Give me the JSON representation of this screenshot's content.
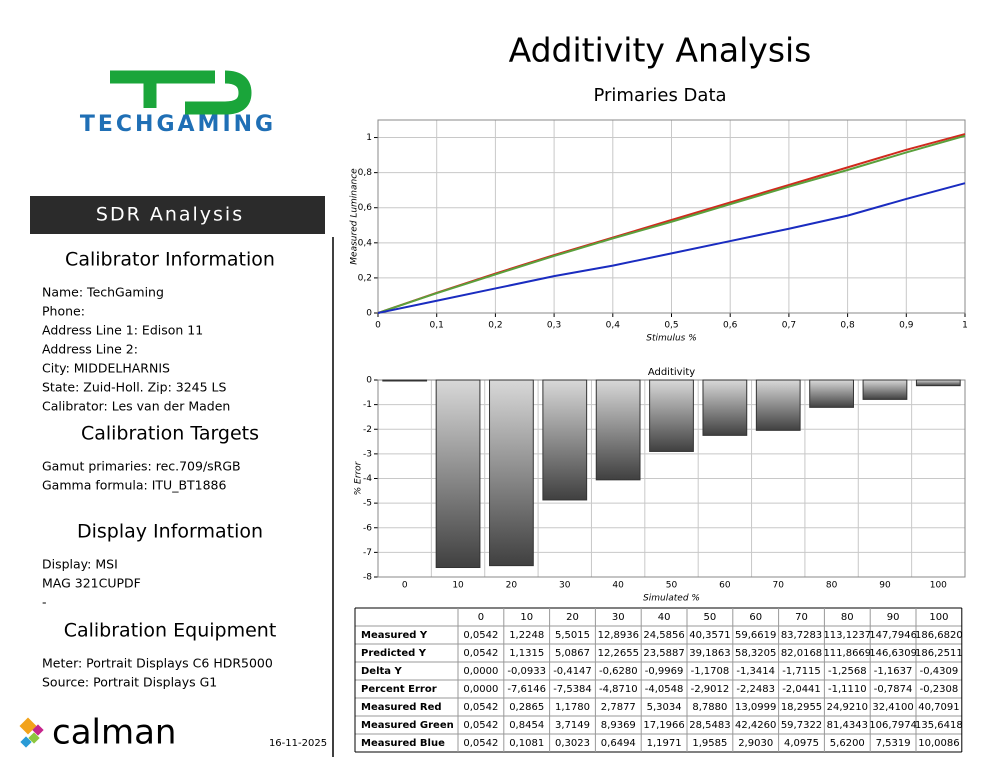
{
  "logo": {
    "brand": "TECHGAMING",
    "vendor": "calman"
  },
  "header": {
    "title": "Additivity Analysis",
    "subtitle": "Primaries Data"
  },
  "date": "16-11-2025",
  "sidebar": {
    "banner": "SDR Analysis",
    "sections": [
      {
        "heading": "Calibrator Information",
        "lines": [
          "Name: TechGaming",
          "Phone:",
          "Address Line 1: Edison 11",
          "Address Line 2:",
          "City: MIDDELHARNIS",
          "State: Zuid-Holl.   Zip: 3245 LS",
          "Calibrator: Les van der Maden"
        ]
      },
      {
        "heading": "Calibration Targets",
        "lines": [
          "Gamut primaries: rec.709/sRGB",
          "Gamma formula: ITU_BT1886"
        ]
      },
      {
        "heading": "Display Information",
        "lines": [
          "Display: MSI",
          "MAG 321CUPDF",
          "-"
        ]
      },
      {
        "heading": "Calibration Equipment",
        "lines": [
          "Meter: Portrait Displays C6 HDR5000",
          "Source: Portrait Displays G1"
        ]
      }
    ]
  },
  "chart_data": [
    {
      "type": "line",
      "x_label": "Stimulus %",
      "y_label": "Measured Luminance",
      "x": [
        0,
        0.1,
        0.2,
        0.3,
        0.4,
        0.5,
        0.6,
        0.7,
        0.8,
        0.9,
        1
      ],
      "series": [
        {
          "color": "#d02a1e",
          "values": [
            0,
            0.115,
            0.225,
            0.33,
            0.43,
            0.53,
            0.63,
            0.73,
            0.83,
            0.93,
            1.02
          ]
        },
        {
          "color": "#5aa03c",
          "values": [
            0,
            0.113,
            0.22,
            0.325,
            0.425,
            0.52,
            0.62,
            0.72,
            0.815,
            0.915,
            1.01
          ]
        },
        {
          "color": "#1a2cc0",
          "values": [
            0,
            0.07,
            0.14,
            0.21,
            0.27,
            0.34,
            0.41,
            0.48,
            0.555,
            0.65,
            0.74
          ]
        }
      ],
      "xlim": [
        0,
        1
      ],
      "ylim": [
        0,
        1.1
      ],
      "grid": true,
      "xticks": [
        0,
        {
          "value": 0.1,
          "label": "0,1"
        },
        {
          "value": 0.2,
          "label": "0,2"
        },
        {
          "value": 0.3,
          "label": "0,3"
        },
        {
          "value": 0.4,
          "label": "0,4"
        },
        {
          "value": 0.5,
          "label": "0,5"
        },
        {
          "value": 0.6,
          "label": "0,6"
        },
        {
          "value": 0.7,
          "label": "0,7"
        },
        {
          "value": 0.8,
          "label": "0,8"
        },
        {
          "value": 0.9,
          "label": "0,9"
        },
        1
      ],
      "yticks": [
        0,
        {
          "value": 0.2,
          "label": "0,2"
        },
        {
          "value": 0.4,
          "label": "0,4"
        },
        {
          "value": 0.6,
          "label": "0,6"
        },
        {
          "value": 0.8,
          "label": "0,8"
        },
        1
      ]
    },
    {
      "type": "bar",
      "title": "Additivity",
      "x_label": "Simulated %",
      "y_label": "% Error",
      "categories": [
        "0",
        "10",
        "20",
        "30",
        "40",
        "50",
        "60",
        "70",
        "80",
        "90",
        "100"
      ],
      "values": [
        0,
        -7.6146,
        -7.5384,
        -4.871,
        -4.0548,
        -2.9012,
        -2.2483,
        -2.0441,
        -1.111,
        -0.7874,
        -0.2308
      ],
      "ylim": [
        -8,
        0
      ],
      "yticks": [
        0,
        -1,
        -2,
        -3,
        -4,
        -5,
        -6,
        -7,
        -8
      ],
      "grid": true
    }
  ],
  "table": {
    "header": [
      "0",
      "10",
      "20",
      "30",
      "40",
      "50",
      "60",
      "70",
      "80",
      "90",
      "100"
    ],
    "rows": [
      [
        "Measured Y",
        "0,0542",
        "1,2248",
        "5,5015",
        "12,8936",
        "24,5856",
        "40,3571",
        "59,6619",
        "83,7283",
        "113,1237",
        "147,7946",
        "186,6820"
      ],
      [
        "Predicted Y",
        "0,0542",
        "1,1315",
        "5,0867",
        "12,2655",
        "23,5887",
        "39,1863",
        "58,3205",
        "82,0168",
        "111,8669",
        "146,6309",
        "186,2511"
      ],
      [
        "Delta Y",
        "0,0000",
        "-0,0933",
        "-0,4147",
        "-0,6280",
        "-0,9969",
        "-1,1708",
        "-1,3414",
        "-1,7115",
        "-1,2568",
        "-1,1637",
        "-0,4309"
      ],
      [
        "Percent Error",
        "0,0000",
        "-7,6146",
        "-7,5384",
        "-4,8710",
        "-4,0548",
        "-2,9012",
        "-2,2483",
        "-2,0441",
        "-1,1110",
        "-0,7874",
        "-0,2308"
      ],
      [
        "Measured Red",
        "0,0542",
        "0,2865",
        "1,1780",
        "2,7877",
        "5,3034",
        "8,7880",
        "13,0999",
        "18,2955",
        "24,9210",
        "32,4100",
        "40,7091"
      ],
      [
        "Measured Green",
        "0,0542",
        "0,8454",
        "3,7149",
        "8,9369",
        "17,1966",
        "28,5483",
        "42,4260",
        "59,7322",
        "81,4343",
        "106,7974",
        "135,6418"
      ],
      [
        "Measured Blue",
        "0,0542",
        "0,1081",
        "0,3023",
        "0,6494",
        "1,1971",
        "1,9585",
        "2,9030",
        "4,0975",
        "5,6200",
        "7,5319",
        "10,0086"
      ]
    ]
  }
}
